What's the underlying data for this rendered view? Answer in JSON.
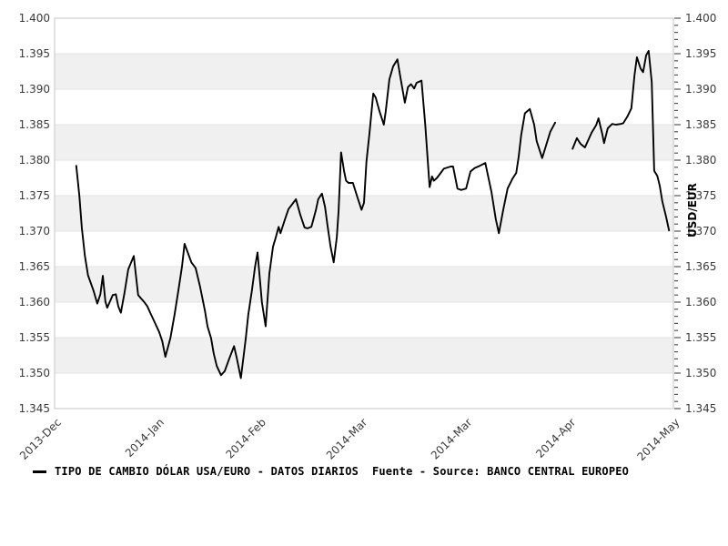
{
  "colors": {
    "line": "#000000",
    "band": "#f0f0f0",
    "grid": "#e3e3e3",
    "border": "#c6c6c6",
    "tick": "#555555",
    "tick_text": "#3a3a3a"
  },
  "axis": {
    "right_title": "USD/EUR"
  },
  "legend": {
    "label": "TIPO DE CAMBIO DÓLAR USA/EURO - DATOS DIARIOS  Fuente - Source: BANCO CENTRAL EUROPEO"
  },
  "chart_data": {
    "type": "line",
    "title": "TIPO DE CAMBIO DÓLAR USA/EURO - DATOS DIARIOS",
    "source": "Fuente - Source: BANCO CENTRAL EUROPEO",
    "ylabel": "USD/EUR",
    "ylim": [
      1.345,
      1.4
    ],
    "y_tick_labels": [
      "1.400",
      "1.395",
      "1.390",
      "1.385",
      "1.380",
      "1.375",
      "1.370",
      "1.365",
      "1.360",
      "1.355",
      "1.350",
      "1.345"
    ],
    "y_minor_tick_step": 0.001,
    "x_tick_labels": [
      "2013-Dec",
      "2014-Jan",
      "2014-Feb",
      "2014-Mar",
      "2014-Mar",
      "2014-Apr",
      "2014-May"
    ],
    "x_tick_positions": [
      0,
      0.166,
      0.331,
      0.496,
      0.665,
      0.831,
      1.0
    ],
    "grid": "alternating horizontal bands",
    "legend_position": "bottom-left",
    "series": [
      {
        "name": "TIPO DE CAMBIO DÓLAR USA/EURO - DATOS DIARIOS",
        "color": "#000000",
        "frequency": "daily",
        "note": "x = fraction of time axis (Dec 2013 - May 2014); null = missing data gap",
        "points": [
          [
            0.035,
            1.3792
          ],
          [
            0.04,
            1.375
          ],
          [
            0.044,
            1.3705
          ],
          [
            0.049,
            1.3665
          ],
          [
            0.054,
            1.3638
          ],
          [
            0.063,
            1.3616
          ],
          [
            0.069,
            1.3598
          ],
          [
            0.074,
            1.3611
          ],
          [
            0.078,
            1.3637
          ],
          [
            0.082,
            1.3601
          ],
          [
            0.085,
            1.3592
          ],
          [
            0.094,
            1.361
          ],
          [
            0.099,
            1.3611
          ],
          [
            0.103,
            1.3594
          ],
          [
            0.107,
            1.3585
          ],
          [
            0.113,
            1.3613
          ],
          [
            0.119,
            1.3646
          ],
          [
            0.128,
            1.3665
          ],
          [
            0.135,
            1.361
          ],
          [
            0.144,
            1.3601
          ],
          [
            0.15,
            1.3594
          ],
          [
            0.154,
            1.3586
          ],
          [
            0.162,
            1.3571
          ],
          [
            0.169,
            1.3558
          ],
          [
            0.174,
            1.3545
          ],
          [
            0.179,
            1.3523
          ],
          [
            0.187,
            1.3549
          ],
          [
            0.194,
            1.3583
          ],
          [
            0.201,
            1.3622
          ],
          [
            0.206,
            1.3651
          ],
          [
            0.21,
            1.3682
          ],
          [
            0.216,
            1.3668
          ],
          [
            0.221,
            1.3656
          ],
          [
            0.228,
            1.3648
          ],
          [
            0.235,
            1.3622
          ],
          [
            0.243,
            1.3588
          ],
          [
            0.247,
            1.3566
          ],
          [
            0.253,
            1.3549
          ],
          [
            0.257,
            1.3528
          ],
          [
            0.262,
            1.351
          ],
          [
            0.269,
            1.3497
          ],
          [
            0.275,
            1.3503
          ],
          [
            0.282,
            1.352
          ],
          [
            0.29,
            1.3538
          ],
          [
            0.294,
            1.3523
          ],
          [
            0.301,
            1.3493
          ],
          [
            0.309,
            1.3549
          ],
          [
            0.313,
            1.3582
          ],
          [
            0.319,
            1.3617
          ],
          [
            0.324,
            1.365
          ],
          [
            0.328,
            1.367
          ],
          [
            0.335,
            1.36
          ],
          [
            0.341,
            1.3566
          ],
          [
            0.347,
            1.364
          ],
          [
            0.353,
            1.3678
          ],
          [
            0.357,
            1.369
          ],
          [
            0.362,
            1.3706
          ],
          [
            0.365,
            1.3697
          ],
          [
            0.372,
            1.3716
          ],
          [
            0.378,
            1.3731
          ],
          [
            0.384,
            1.3738
          ],
          [
            0.39,
            1.3745
          ],
          [
            0.397,
            1.3723
          ],
          [
            0.404,
            1.3705
          ],
          [
            0.409,
            1.3704
          ],
          [
            0.415,
            1.3706
          ],
          [
            0.422,
            1.3729
          ],
          [
            0.426,
            1.3745
          ],
          [
            0.432,
            1.3753
          ],
          [
            0.437,
            1.3734
          ],
          [
            0.441,
            1.3708
          ],
          [
            0.446,
            1.3678
          ],
          [
            0.451,
            1.3656
          ],
          [
            0.456,
            1.3691
          ],
          [
            0.459,
            1.3729
          ],
          [
            0.463,
            1.3811
          ],
          [
            0.468,
            1.3784
          ],
          [
            0.471,
            1.3771
          ],
          [
            0.475,
            1.3768
          ],
          [
            0.482,
            1.3768
          ],
          [
            0.49,
            1.3746
          ],
          [
            0.496,
            1.373
          ],
          [
            0.5,
            1.374
          ],
          [
            0.504,
            1.3798
          ],
          [
            0.509,
            1.3839
          ],
          [
            0.515,
            1.3894
          ],
          [
            0.519,
            1.3888
          ],
          [
            0.525,
            1.3869
          ],
          [
            0.532,
            1.385
          ],
          [
            0.535,
            1.3868
          ],
          [
            0.541,
            1.3914
          ],
          [
            0.547,
            1.3932
          ],
          [
            0.554,
            1.3942
          ],
          [
            0.559,
            1.3916
          ],
          [
            0.566,
            1.3881
          ],
          [
            0.571,
            1.3903
          ],
          [
            0.576,
            1.3907
          ],
          [
            0.581,
            1.3901
          ],
          [
            0.585,
            1.3909
          ],
          [
            0.593,
            1.3912
          ],
          [
            0.599,
            1.385
          ],
          [
            0.606,
            1.3762
          ],
          [
            0.61,
            1.3777
          ],
          [
            0.613,
            1.3771
          ],
          [
            0.618,
            1.3775
          ],
          [
            0.624,
            1.3782
          ],
          [
            0.629,
            1.3788
          ],
          [
            0.64,
            1.3791
          ],
          [
            0.644,
            1.3791
          ],
          [
            0.651,
            1.376
          ],
          [
            0.657,
            1.3758
          ],
          [
            0.665,
            1.376
          ],
          [
            0.672,
            1.3784
          ],
          [
            0.679,
            1.3789
          ],
          [
            0.687,
            1.3792
          ],
          [
            0.696,
            1.3796
          ],
          [
            0.706,
            1.3755
          ],
          [
            0.713,
            1.3717
          ],
          [
            0.718,
            1.3697
          ],
          [
            0.725,
            1.373
          ],
          [
            0.732,
            1.376
          ],
          [
            0.74,
            1.3774
          ],
          [
            0.746,
            1.3782
          ],
          [
            0.75,
            1.3805
          ],
          [
            0.754,
            1.3835
          ],
          [
            0.76,
            1.3866
          ],
          [
            0.768,
            1.3872
          ],
          [
            0.775,
            1.385
          ],
          [
            0.779,
            1.3827
          ],
          [
            0.788,
            1.3803
          ],
          [
            0.794,
            1.382
          ],
          [
            0.801,
            1.384
          ],
          [
            0.809,
            1.3853
          ],
          [
            0.82,
            null
          ],
          [
            0.837,
            1.3816
          ],
          [
            0.844,
            1.3831
          ],
          [
            0.85,
            1.3823
          ],
          [
            0.857,
            1.3818
          ],
          [
            0.868,
            1.3839
          ],
          [
            0.875,
            1.3849
          ],
          [
            0.879,
            1.3859
          ],
          [
            0.885,
            1.3837
          ],
          [
            0.888,
            1.3824
          ],
          [
            0.894,
            1.3845
          ],
          [
            0.901,
            1.3851
          ],
          [
            0.907,
            1.385
          ],
          [
            0.915,
            1.3851
          ],
          [
            0.919,
            1.3852
          ],
          [
            0.926,
            1.3862
          ],
          [
            0.932,
            1.3873
          ],
          [
            0.937,
            1.3919
          ],
          [
            0.941,
            1.3945
          ],
          [
            0.947,
            1.3929
          ],
          [
            0.951,
            1.3924
          ],
          [
            0.956,
            1.3948
          ],
          [
            0.96,
            1.3954
          ],
          [
            0.965,
            1.391
          ],
          [
            0.969,
            1.3785
          ],
          [
            0.974,
            1.3778
          ],
          [
            0.978,
            1.3764
          ],
          [
            0.982,
            1.3742
          ],
          [
            0.988,
            1.3721
          ],
          [
            0.993,
            1.3701
          ]
        ]
      }
    ]
  }
}
